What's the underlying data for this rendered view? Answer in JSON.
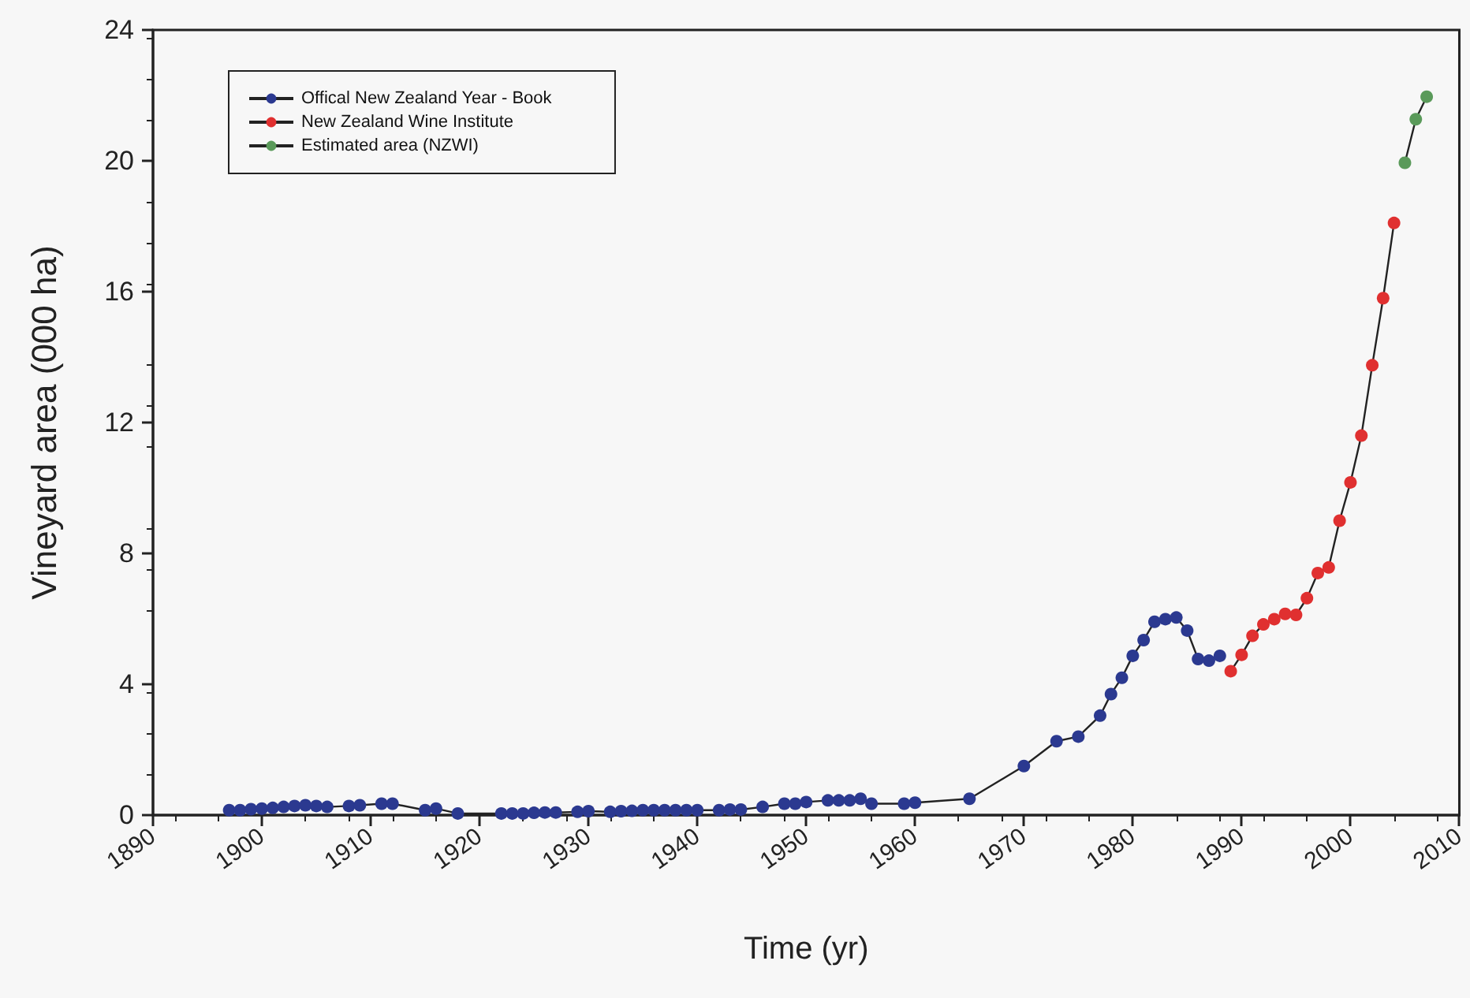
{
  "chart_data": {
    "type": "line",
    "xlabel": "Time (yr)",
    "ylabel": "Vineyard area (000 ha)",
    "xlim": [
      1890,
      2010
    ],
    "xticks": [
      1890,
      1900,
      1910,
      1920,
      1930,
      1940,
      1950,
      1960,
      1970,
      1980,
      1990,
      2000,
      2010
    ],
    "ylim": [
      0,
      24
    ],
    "yticks": [
      0,
      4,
      8,
      12,
      16,
      20,
      24
    ],
    "grid": false,
    "legend": "top left",
    "marker": "circle",
    "line_style": "solid",
    "series": [
      {
        "name": "Offical New Zealand Year - Book",
        "color": "#2b3990",
        "x": [
          1897,
          1898,
          1899,
          1900,
          1901,
          1902,
          1903,
          1904,
          1905,
          1906,
          1908,
          1909,
          1911,
          1912,
          1915,
          1916,
          1918,
          1922,
          1923,
          1924,
          1925,
          1926,
          1927,
          1929,
          1930,
          1932,
          1933,
          1934,
          1935,
          1936,
          1937,
          1938,
          1939,
          1940,
          1942,
          1943,
          1944,
          1946,
          1948,
          1949,
          1950,
          1952,
          1953,
          1954,
          1955,
          1956,
          1959,
          1960,
          1965,
          1970,
          1973,
          1975,
          1977,
          1978,
          1979,
          1980,
          1981,
          1982,
          1983,
          1984,
          1985,
          1986,
          1987,
          1988
        ],
        "values": [
          0.15,
          0.15,
          0.18,
          0.2,
          0.22,
          0.25,
          0.28,
          0.3,
          0.28,
          0.25,
          0.28,
          0.3,
          0.35,
          0.35,
          0.15,
          0.2,
          0.05,
          0.05,
          0.05,
          0.05,
          0.07,
          0.08,
          0.08,
          0.1,
          0.12,
          0.1,
          0.12,
          0.13,
          0.15,
          0.15,
          0.15,
          0.15,
          0.15,
          0.15,
          0.15,
          0.17,
          0.17,
          0.25,
          0.35,
          0.35,
          0.4,
          0.45,
          0.45,
          0.45,
          0.5,
          0.35,
          0.35,
          0.38,
          0.5,
          1.5,
          2.26,
          2.4,
          3.04,
          3.7,
          4.2,
          4.87,
          5.35,
          5.91,
          5.99,
          6.04,
          5.64,
          4.77,
          4.72,
          4.87
        ]
      },
      {
        "name": "New Zealand Wine Institute",
        "color": "#e03030",
        "x": [
          1989,
          1990,
          1991,
          1992,
          1993,
          1994,
          1995,
          1996,
          1997,
          1998,
          1999,
          2000,
          2001,
          2002,
          2003,
          2004
        ],
        "values": [
          4.4,
          4.9,
          5.48,
          5.83,
          5.99,
          6.15,
          6.12,
          6.63,
          7.4,
          7.57,
          9.0,
          10.17,
          11.6,
          13.75,
          15.8,
          18.1
        ]
      },
      {
        "name": "Estimated area (NZWI)",
        "color": "#5a9a5a",
        "x": [
          2005,
          2006,
          2007
        ],
        "values": [
          19.94,
          21.27,
          21.96
        ]
      }
    ]
  }
}
